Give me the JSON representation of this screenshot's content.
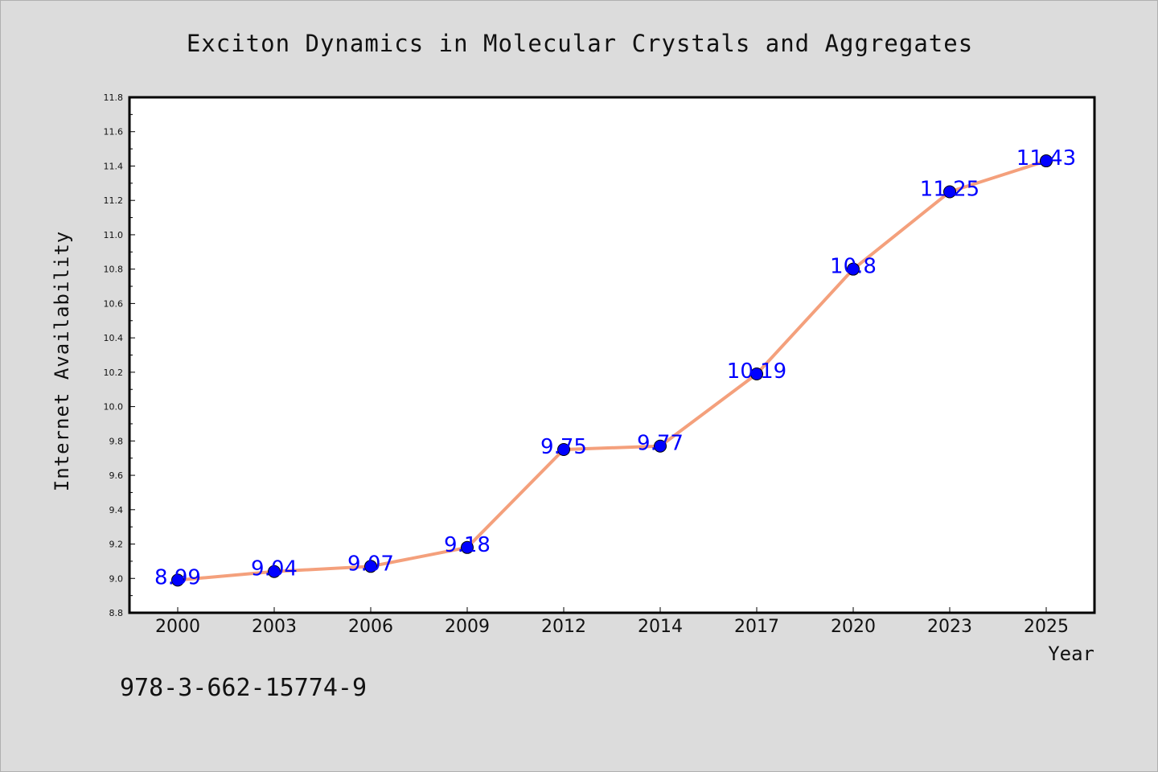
{
  "chart_data": {
    "type": "line",
    "title": "Exciton Dynamics in Molecular Crystals and Aggregates",
    "xlabel": "Year",
    "ylabel": "Internet Availability",
    "categories": [
      "2000",
      "2003",
      "2006",
      "2009",
      "2012",
      "2014",
      "2017",
      "2020",
      "2023",
      "2025"
    ],
    "series": [
      {
        "values": [
          8.99,
          9.04,
          9.07,
          9.18,
          9.75,
          9.77,
          10.19,
          10.8,
          11.25,
          11.43
        ],
        "data_labels": [
          "8.99",
          "9.04",
          "9.07",
          "9.18",
          "9.75",
          "9.77",
          "10.19",
          "10.8",
          "11.25",
          "11.43"
        ]
      }
    ],
    "ylim": [
      8.8,
      11.8
    ],
    "yticks": [
      "8.8",
      "9.0",
      "9.2",
      "9.4",
      "9.6",
      "9.8",
      "10.0",
      "10.2",
      "10.4",
      "10.6",
      "10.8",
      "11.0",
      "11.2",
      "11.4",
      "11.6",
      "11.8"
    ],
    "grid": false,
    "legend": "none"
  },
  "colors": {
    "line": "#f4a07c",
    "marker": "#0000ff",
    "data_label": "#0000ff",
    "background": "#dcdcdc",
    "plot_area": "#ffffff"
  },
  "footer_code": "978-3-662-15774-9"
}
